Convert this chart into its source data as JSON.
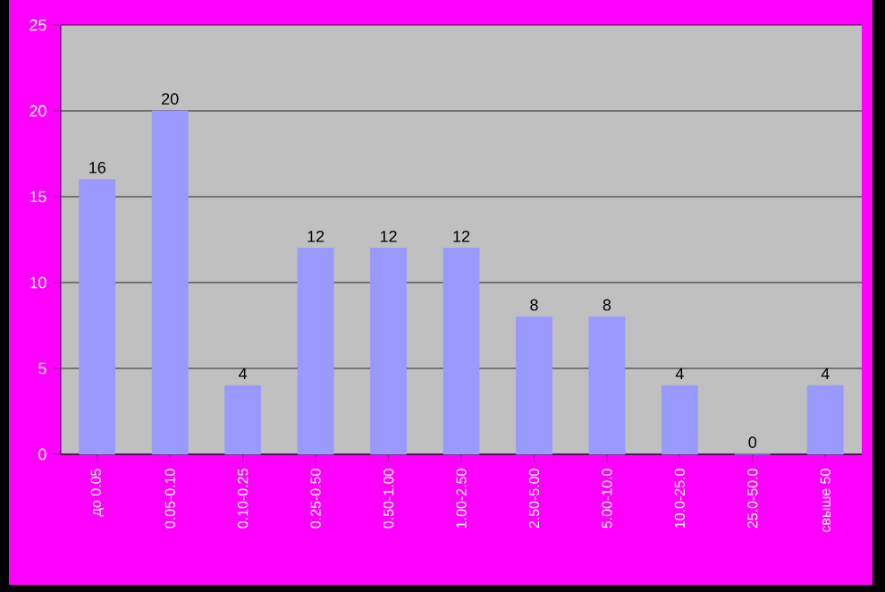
{
  "chart_data": {
    "type": "bar",
    "categories": [
      "до 0.05",
      "0.05-0.10",
      "0.10-0.25",
      "0.25-0.50",
      "0.50-1.00",
      "1.00-2.50",
      "2.50-5.00",
      "5.00-10.0",
      "10.0-25.0",
      "25.0-50.0",
      "свыше 50"
    ],
    "values": [
      16,
      20,
      4,
      12,
      12,
      12,
      8,
      8,
      4,
      0,
      4
    ],
    "color": "#9999ff",
    "ylim": [
      0,
      25
    ],
    "yticks": [
      0,
      5,
      10,
      15,
      20,
      25
    ],
    "grid": "y",
    "data_labels": true
  }
}
